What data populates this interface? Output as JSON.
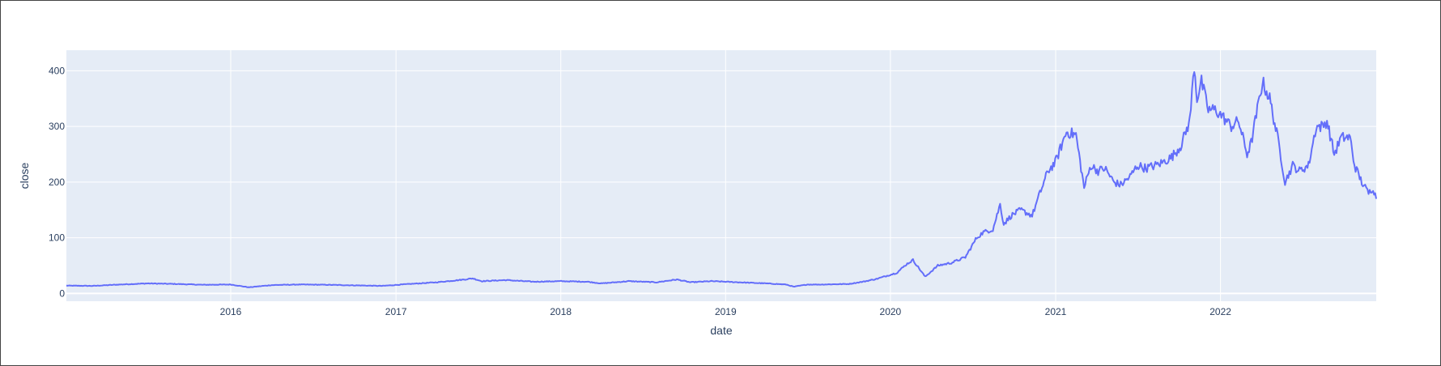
{
  "chart_data": {
    "type": "line",
    "title": "",
    "xlabel": "date",
    "ylabel": "close",
    "x_tick_labels": [
      "2016",
      "2017",
      "2018",
      "2019",
      "2020",
      "2021",
      "2022"
    ],
    "y_tick_labels": [
      "0",
      "100",
      "200",
      "300",
      "400"
    ],
    "xlim": [
      "2015-01-02",
      "2022-12-12"
    ],
    "ylim": [
      -14,
      437
    ],
    "grid": true,
    "legend": "none",
    "colors": {
      "line": "#636efa",
      "plot_bg": "#e5ecf6",
      "grid": "#ffffff",
      "text": "#2a3f5f"
    },
    "series": [
      {
        "x": [
          "2015-01-02",
          "2015-03-01",
          "2015-05-01",
          "2015-07-01",
          "2015-09-01",
          "2015-11-01",
          "2016-01-01",
          "2016-02-10",
          "2016-04-01",
          "2016-06-01",
          "2016-08-01",
          "2016-10-01",
          "2016-12-01",
          "2017-02-01",
          "2017-04-01",
          "2017-06-01",
          "2017-06-20",
          "2017-07-10",
          "2017-09-01",
          "2017-11-01",
          "2018-01-01",
          "2018-03-01",
          "2018-04-01",
          "2018-06-01",
          "2018-08-01",
          "2018-09-15",
          "2018-10-15",
          "2018-12-01",
          "2019-01-01",
          "2019-03-01",
          "2019-04-01",
          "2019-05-15",
          "2019-06-01",
          "2019-07-01",
          "2019-08-01",
          "2019-10-01",
          "2019-11-01",
          "2019-12-01",
          "2020-01-15",
          "2020-02-05",
          "2020-02-20",
          "2020-03-18",
          "2020-04-15",
          "2020-05-15",
          "2020-06-15",
          "2020-07-10",
          "2020-07-25",
          "2020-08-15",
          "2020-08-31",
          "2020-09-08",
          "2020-09-25",
          "2020-10-15",
          "2020-11-10",
          "2020-11-25",
          "2020-12-15",
          "2020-12-31",
          "2021-01-25",
          "2021-02-15",
          "2021-03-05",
          "2021-03-20",
          "2021-04-05",
          "2021-04-20",
          "2021-05-10",
          "2021-05-25",
          "2021-06-15",
          "2021-07-01",
          "2021-07-20",
          "2021-08-10",
          "2021-08-25",
          "2021-09-15",
          "2021-10-05",
          "2021-10-25",
          "2021-11-04",
          "2021-11-10",
          "2021-11-20",
          "2021-12-05",
          "2021-12-20",
          "2022-01-03",
          "2022-01-25",
          "2022-02-10",
          "2022-03-01",
          "2022-03-10",
          "2022-04-04",
          "2022-04-20",
          "2022-05-10",
          "2022-05-24",
          "2022-06-10",
          "2022-06-25",
          "2022-07-15",
          "2022-08-01",
          "2022-08-15",
          "2022-08-25",
          "2022-09-10",
          "2022-09-25",
          "2022-10-15",
          "2022-10-25",
          "2022-11-10",
          "2022-11-25",
          "2022-12-05",
          "2022-12-12"
        ],
        "y": [
          14,
          13.5,
          16,
          18,
          17,
          15.5,
          16,
          11,
          15,
          16,
          15.5,
          14.5,
          13.5,
          17,
          20,
          25,
          27,
          22,
          24,
          21,
          22,
          21,
          18,
          22,
          20,
          25,
          20,
          22,
          21,
          19,
          18,
          16,
          12,
          16,
          16,
          17,
          21,
          26,
          37,
          52,
          60,
          30,
          50,
          55,
          65,
          100,
          110,
          115,
          160,
          125,
          140,
          150,
          140,
          175,
          220,
          235,
          290,
          285,
          190,
          230,
          220,
          225,
          200,
          195,
          210,
          230,
          225,
          230,
          235,
          245,
          265,
          310,
          410,
          350,
          380,
          330,
          330,
          320,
          300,
          310,
          250,
          270,
          380,
          350,
          270,
          200,
          230,
          220,
          230,
          300,
          300,
          310,
          250,
          280,
          280,
          230,
          200,
          180,
          190,
          170
        ]
      }
    ]
  }
}
